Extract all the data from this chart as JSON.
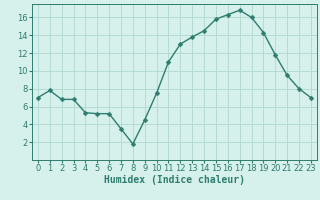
{
  "x": [
    0,
    1,
    2,
    3,
    4,
    5,
    6,
    7,
    8,
    9,
    10,
    11,
    12,
    13,
    14,
    15,
    16,
    17,
    18,
    19,
    20,
    21,
    22,
    23
  ],
  "y": [
    7.0,
    7.8,
    6.8,
    6.8,
    5.3,
    5.2,
    5.2,
    3.5,
    1.8,
    4.5,
    7.5,
    11.0,
    13.0,
    13.8,
    14.5,
    15.8,
    16.3,
    16.8,
    16.0,
    14.3,
    11.8,
    9.5,
    8.0,
    7.0
  ],
  "line_color": "#2e7d6e",
  "marker": "D",
  "marker_size": 2.5,
  "bg_color": "#d6f0ec",
  "grid_color": "#b0d8d0",
  "xlabel": "Humidex (Indice chaleur)",
  "ylabel": "",
  "xlim": [
    -0.5,
    23.5
  ],
  "ylim": [
    0,
    17.5
  ],
  "yticks": [
    2,
    4,
    6,
    8,
    10,
    12,
    14,
    16
  ],
  "xticks": [
    0,
    1,
    2,
    3,
    4,
    5,
    6,
    7,
    8,
    9,
    10,
    11,
    12,
    13,
    14,
    15,
    16,
    17,
    18,
    19,
    20,
    21,
    22,
    23
  ],
  "tick_color": "#2e7d6e",
  "label_fontsize": 7,
  "tick_fontsize": 6,
  "line_width": 1.0
}
